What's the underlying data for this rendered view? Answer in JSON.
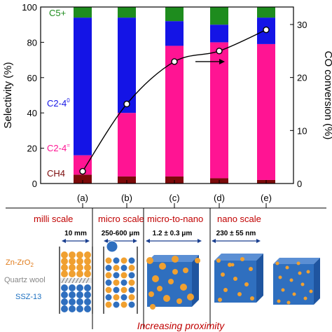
{
  "chart_data": {
    "type": "bar",
    "subtype": "stacked-bar-with-line",
    "categories": [
      "(a)",
      "(b)",
      "(c)",
      "(d)",
      "(e)"
    ],
    "left_axis": {
      "label": "Selectivity (%)",
      "range": [
        0,
        100
      ],
      "ticks": [
        0,
        20,
        40,
        60,
        80,
        100
      ]
    },
    "right_axis": {
      "label": "CO conversion (%)",
      "range": [
        0,
        33.3
      ],
      "ticks": [
        0,
        10,
        20,
        30
      ]
    },
    "series": [
      {
        "name": "CH4",
        "sub": "",
        "color": "#7b0a0a",
        "values": [
          5,
          4,
          4,
          3,
          2
        ]
      },
      {
        "name": "C2-4",
        "sub": "=",
        "color": "#ff1493",
        "values": [
          11,
          36,
          74,
          77,
          77
        ]
      },
      {
        "name": "C2-4",
        "sub": "0",
        "color": "#1414e6",
        "values": [
          78,
          54,
          14,
          10,
          15
        ]
      },
      {
        "name": "C5+",
        "sub": "",
        "color": "#1e8c1e",
        "values": [
          6,
          6,
          8,
          10,
          6
        ]
      }
    ],
    "conversion": {
      "axis": "right",
      "values": [
        2.3,
        15,
        23,
        25,
        29
      ]
    },
    "grid": false
  },
  "scale_labels": [
    "milli scale",
    "micro scale",
    "micro-to-nano",
    "nano scale"
  ],
  "size_labels": [
    "10 mm",
    "250-600 μm",
    "1.2 ± 0.3 μm",
    "230 ± 55 nm"
  ],
  "material_labels": {
    "znzro": "Zn-ZrO",
    "znzro_sub": "2",
    "quartz": "Quartz wool",
    "ssz": "SSZ-13"
  },
  "footer": "Increasing proximity",
  "colors": {
    "orange": "#f0a030",
    "zeolite_blue": "#2f6fbf",
    "zn_label": "#e07b1a",
    "ssz_label": "#1a6fc0",
    "footer": "#c00000"
  }
}
